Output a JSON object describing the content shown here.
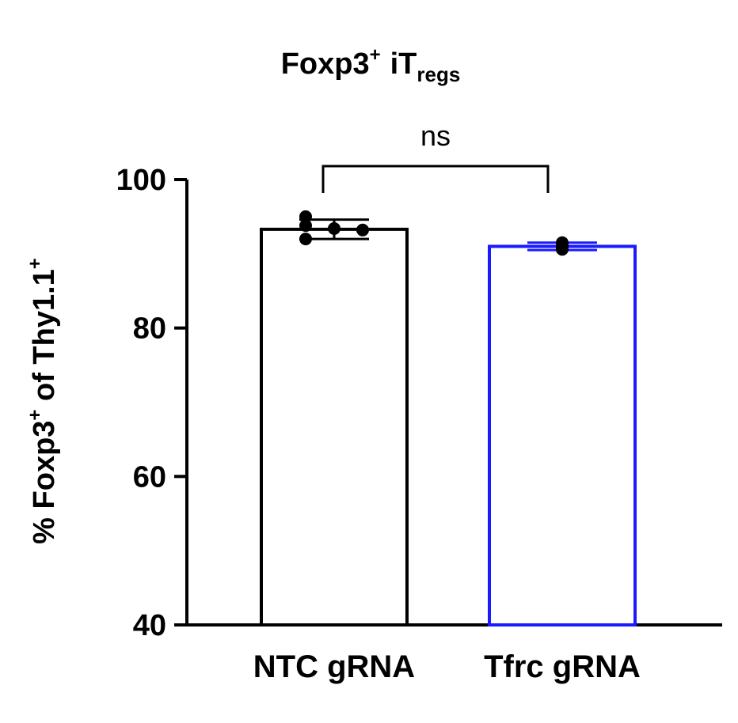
{
  "chart_data": {
    "type": "bar",
    "title": {
      "main": "Foxp3",
      "main_sup": "+",
      "suffix": "iT",
      "suffix_sub": "regs"
    },
    "ylabel": {
      "part1": "% Foxp3",
      "sup1": "+",
      "part2": " of Thy1.1",
      "sup2": "+"
    },
    "xlabel": "",
    "ylim": [
      40,
      100
    ],
    "yticks": [
      40,
      60,
      80,
      100
    ],
    "grid": false,
    "categories": [
      "NTC gRNA",
      "Tfrc gRNA"
    ],
    "values": [
      93.3,
      91.0
    ],
    "errors": [
      1.3,
      0.5
    ],
    "colors": [
      "#000000",
      "#1a1aff"
    ],
    "points": [
      [
        95.0,
        93.8,
        93.4,
        93.2,
        92.0
      ],
      [
        91.5,
        91.2,
        90.9,
        90.6
      ]
    ],
    "annotation": {
      "text": "ns",
      "from": 0,
      "to": 1
    }
  }
}
